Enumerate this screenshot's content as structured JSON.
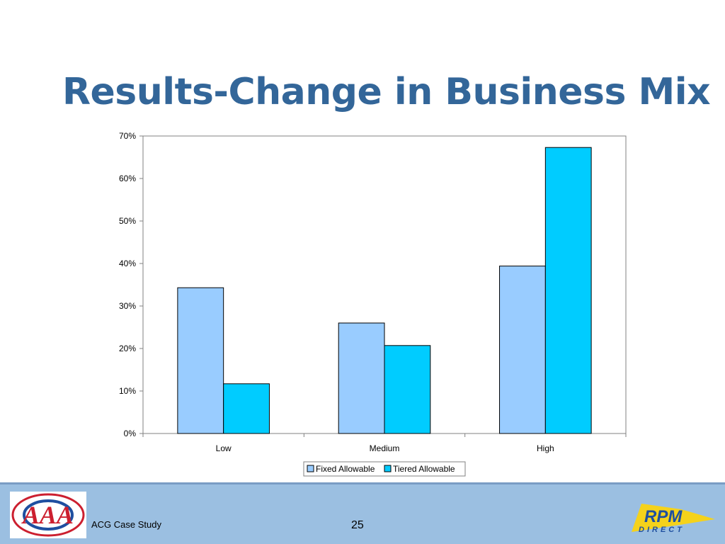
{
  "slide": {
    "title": "Results-Change in Business Mix"
  },
  "footer": {
    "left_text": "ACG Case Study",
    "page_number": "25",
    "logo_left_text": "AAA",
    "logo_right_text_top": "RPM",
    "logo_right_text_bottom": "DIRECT"
  },
  "colors": {
    "title": "#336699",
    "fixed": "#99ccff",
    "tiered": "#00ccff",
    "footer_bg": "#9bbfe1"
  },
  "chart_data": {
    "type": "bar",
    "categories": [
      "Low",
      "Medium",
      "High"
    ],
    "series": [
      {
        "name": "Fixed Allowable",
        "values": [
          34.3,
          26.0,
          39.4
        ]
      },
      {
        "name": "Tiered Allowable",
        "values": [
          11.7,
          20.7,
          67.3
        ]
      }
    ],
    "y_ticks": [
      "0%",
      "10%",
      "20%",
      "30%",
      "40%",
      "50%",
      "60%",
      "70%"
    ],
    "ylim": [
      0,
      70
    ],
    "y_unit": "%",
    "grid": false,
    "legend_position": "bottom"
  }
}
